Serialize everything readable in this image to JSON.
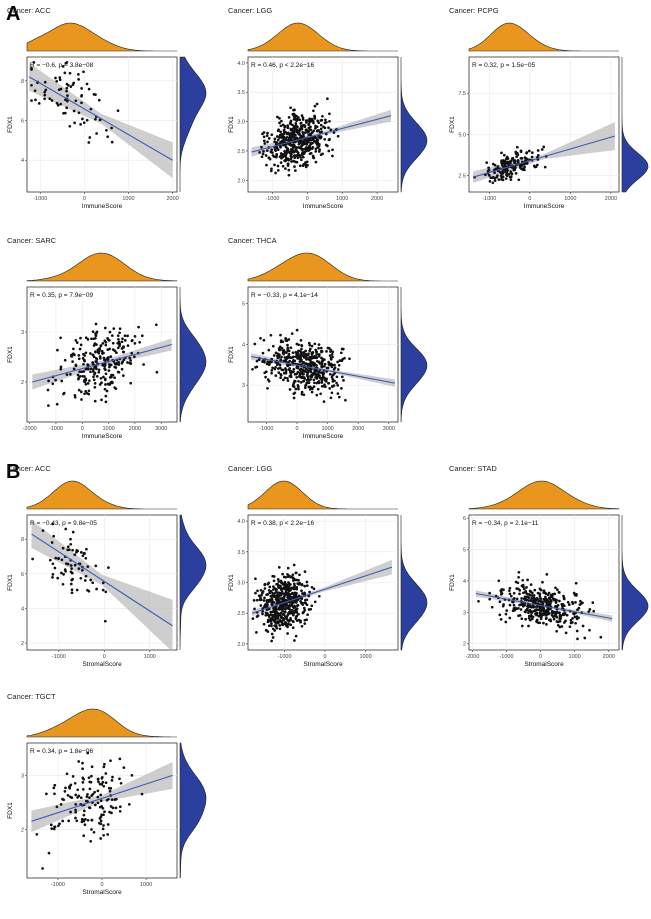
{
  "panel_labels": [
    "A",
    "B"
  ],
  "colors": {
    "fit_line": "#3b5db5",
    "band": "#bdbdbd",
    "top_density": "#e8961e",
    "right_density": "#2a3f9e",
    "points": "#111111",
    "grid": "#e9e9e9",
    "frame": "#333333"
  },
  "chart_data": [
    {
      "type": "scatter",
      "panel": "A",
      "title": "Cancer: ACC",
      "xlabel": "ImmuneScore",
      "ylabel": "FDX1",
      "stat_r": "R = −0.6, p = 3.8e−08",
      "xlim": [
        -1300,
        2100
      ],
      "ylim": [
        2.4,
        9.2
      ],
      "xticks": [
        "-1000",
        "0",
        "1000",
        "2000"
      ],
      "xtick_values": [
        -1000,
        0,
        1000,
        2000
      ],
      "yticks": [
        "4",
        "6",
        "8"
      ],
      "ytick_values": [
        4,
        6,
        8
      ],
      "fit": {
        "x1": -1250,
        "y1": 8.2,
        "x2": 2000,
        "y2": 4.0,
        "band_half_left": 0.7,
        "band_half_mid": 0.25,
        "band_half_right": 0.9
      },
      "seed": 11,
      "n": 78,
      "x_center": -350,
      "x_spread": 700,
      "noise": 1.15
    },
    {
      "type": "scatter",
      "panel": "A",
      "title": "Cancer: LGG",
      "xlabel": "ImmuneScore",
      "ylabel": "FDX1",
      "stat_r": "R = 0.46, p < 2.2e−16",
      "xlim": [
        -1700,
        2600
      ],
      "ylim": [
        1.8,
        4.1
      ],
      "xticks": [
        "-1000",
        "0",
        "1000",
        "2000"
      ],
      "xtick_values": [
        -1000,
        0,
        1000,
        2000
      ],
      "yticks": [
        "2.0",
        "2.5",
        "3.0",
        "3.5",
        "4.0"
      ],
      "ytick_values": [
        2.0,
        2.5,
        3.0,
        3.5,
        4.0
      ],
      "fit": {
        "x1": -1600,
        "y1": 2.48,
        "x2": 2400,
        "y2": 3.1,
        "band_half_left": 0.08,
        "band_half_mid": 0.03,
        "band_half_right": 0.1
      },
      "seed": 23,
      "n": 500,
      "x_center": -250,
      "x_spread": 600,
      "noise": 0.33
    },
    {
      "type": "scatter",
      "panel": "A",
      "title": "Cancer: PCPG",
      "xlabel": "ImmuneScore",
      "ylabel": "FDX1",
      "stat_r": "R = 0.32, p = 1.5e−05",
      "xlim": [
        -1500,
        2200
      ],
      "ylim": [
        1.5,
        9.7
      ],
      "xticks": [
        "-1000",
        "0",
        "1000",
        "2000"
      ],
      "xtick_values": [
        -1000,
        0,
        1000,
        2000
      ],
      "yticks": [
        "2.5",
        "5.0",
        "7.5"
      ],
      "ytick_values": [
        2.5,
        5.0,
        7.5
      ],
      "fit": {
        "x1": -1400,
        "y1": 2.4,
        "x2": 2100,
        "y2": 4.9,
        "band_half_left": 0.35,
        "band_half_mid": 0.15,
        "band_half_right": 0.85
      },
      "seed": 37,
      "n": 180,
      "x_center": -450,
      "x_spread": 480,
      "noise": 0.55
    },
    {
      "type": "scatter",
      "panel": "A",
      "title": "Cancer: SARC",
      "xlabel": "ImmuneScore",
      "ylabel": "FDX1",
      "stat_r": "R = 0.35, p = 7.9e−09",
      "xlim": [
        -2100,
        3600
      ],
      "ylim": [
        1.2,
        3.9
      ],
      "xticks": [
        "-2000",
        "-1000",
        "0",
        "1000",
        "2000",
        "3000"
      ],
      "xtick_values": [
        -2000,
        -1000,
        0,
        1000,
        2000,
        3000
      ],
      "yticks": [
        "2",
        "3"
      ],
      "ytick_values": [
        2,
        3
      ],
      "fit": {
        "x1": -1900,
        "y1": 2.0,
        "x2": 3400,
        "y2": 2.75,
        "band_half_left": 0.15,
        "band_half_mid": 0.05,
        "band_half_right": 0.12
      },
      "seed": 41,
      "n": 260,
      "x_center": 700,
      "x_spread": 1100,
      "noise": 0.45
    },
    {
      "type": "scatter",
      "panel": "A",
      "title": "Cancer: THCA",
      "xlabel": "ImmuneScore",
      "ylabel": "FDX1",
      "stat_r": "R = −0.33, p = 4.1e−14",
      "xlim": [
        -1600,
        3300
      ],
      "ylim": [
        2.1,
        5.4
      ],
      "xticks": [
        "-1000",
        "0",
        "1000",
        "2000",
        "3000"
      ],
      "xtick_values": [
        -1000,
        0,
        1000,
        2000,
        3000
      ],
      "yticks": [
        "3",
        "4",
        "5"
      ],
      "ytick_values": [
        3,
        4,
        5
      ],
      "fit": {
        "x1": -1500,
        "y1": 3.7,
        "x2": 3200,
        "y2": 3.05,
        "band_half_left": 0.08,
        "band_half_mid": 0.03,
        "band_half_right": 0.09
      },
      "seed": 53,
      "n": 480,
      "x_center": 300,
      "x_spread": 900,
      "noise": 0.45
    },
    {
      "type": "scatter",
      "panel": "B",
      "title": "Cancer: ACC",
      "xlabel": "StromalScore",
      "ylabel": "FDX1",
      "stat_r": "R = −0.43, p = 9.8e−05",
      "xlim": [
        -1700,
        1600
      ],
      "ylim": [
        1.6,
        9.4
      ],
      "xticks": [
        "-1000",
        "0",
        "1000"
      ],
      "xtick_values": [
        -1000,
        0,
        1000
      ],
      "yticks": [
        "2",
        "4",
        "6",
        "8"
      ],
      "ytick_values": [
        2,
        4,
        6,
        8
      ],
      "fit": {
        "x1": -1600,
        "y1": 8.3,
        "x2": 1500,
        "y2": 3.0,
        "band_half_left": 0.8,
        "band_half_mid": 0.3,
        "band_half_right": 1.5
      },
      "seed": 67,
      "n": 75,
      "x_center": -700,
      "x_spread": 500,
      "noise": 1.3
    },
    {
      "type": "scatter",
      "panel": "B",
      "title": "Cancer: LGG",
      "xlabel": "StromalScore",
      "ylabel": "FDX1",
      "stat_r": "R = 0.38, p < 2.2e−16",
      "xlim": [
        -1900,
        1800
      ],
      "ylim": [
        1.9,
        4.1
      ],
      "xticks": [
        "-1000",
        "0",
        "1000"
      ],
      "xtick_values": [
        -1000,
        0,
        1000
      ],
      "yticks": [
        "2.0",
        "2.5",
        "3.0",
        "3.5",
        "4.0"
      ],
      "ytick_values": [
        2.0,
        2.5,
        3.0,
        3.5,
        4.0
      ],
      "fit": {
        "x1": -1800,
        "y1": 2.5,
        "x2": 1650,
        "y2": 3.25,
        "band_half_left": 0.05,
        "band_half_mid": 0.03,
        "band_half_right": 0.12
      },
      "seed": 79,
      "n": 500,
      "x_center": -1000,
      "x_spread": 420,
      "noise": 0.32
    },
    {
      "type": "scatter",
      "panel": "B",
      "title": "Cancer: STAD",
      "xlabel": "StromalScore",
      "ylabel": "FDX1",
      "stat_r": "R = −0.34, p = 2.1e−11",
      "xlim": [
        -2100,
        2300
      ],
      "ylim": [
        1.8,
        6.1
      ],
      "xticks": [
        "-2000",
        "-1000",
        "0",
        "1000",
        "2000"
      ],
      "xtick_values": [
        -2000,
        -1000,
        0,
        1000,
        2000
      ],
      "yticks": [
        "2",
        "3",
        "4",
        "5",
        "6"
      ],
      "ytick_values": [
        2,
        3,
        4,
        5,
        6
      ],
      "fit": {
        "x1": -1900,
        "y1": 3.6,
        "x2": 2100,
        "y2": 2.8,
        "band_half_left": 0.1,
        "band_half_mid": 0.04,
        "band_half_right": 0.1
      },
      "seed": 89,
      "n": 380,
      "x_center": 0,
      "x_spread": 900,
      "noise": 0.5
    },
    {
      "type": "scatter",
      "panel": "B",
      "title": "Cancer: TGCT",
      "xlabel": "StromalScore",
      "ylabel": "FDX1",
      "stat_r": "R = 0.34, p = 1.8e−06",
      "xlim": [
        -1700,
        1700
      ],
      "ylim": [
        1.1,
        3.6
      ],
      "xticks": [
        "-1000",
        "0",
        "1000"
      ],
      "xtick_values": [
        -1000,
        0,
        1000
      ],
      "yticks": [
        "2",
        "3"
      ],
      "ytick_values": [
        2,
        3
      ],
      "fit": {
        "x1": -1600,
        "y1": 2.15,
        "x2": 1600,
        "y2": 3.0,
        "band_half_left": 0.2,
        "band_half_mid": 0.06,
        "band_half_right": 0.25
      },
      "seed": 97,
      "n": 150,
      "x_center": -300,
      "x_spread": 650,
      "noise": 0.5
    }
  ]
}
